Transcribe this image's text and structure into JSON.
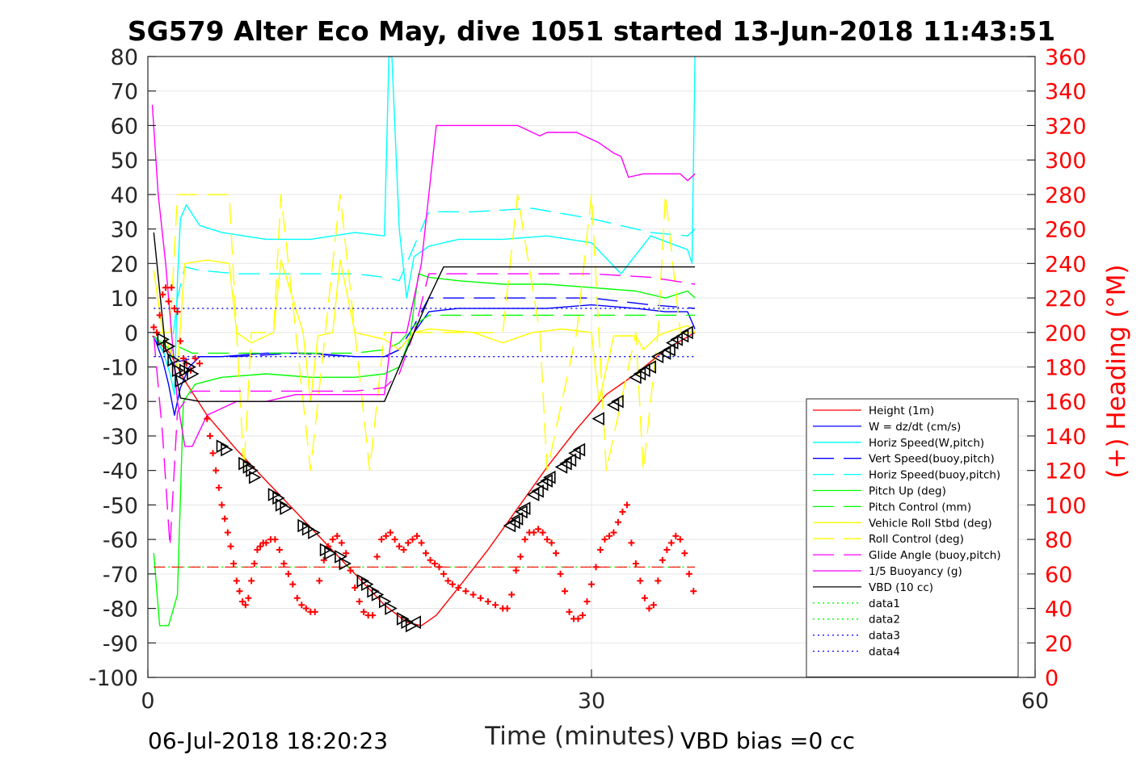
{
  "chart_data": {
    "type": "line",
    "title": "SG579 Alter Eco May, dive 1051 started 13-Jun-2018 11:43:51",
    "xlabel": "Time (minutes)",
    "ylabel": "",
    "y2label": "(+) Heading (°M)",
    "xlim": [
      0,
      60
    ],
    "ylim": [
      -100,
      80
    ],
    "y2lim": [
      0,
      360
    ],
    "x_ticks": [
      "0",
      "30",
      "60"
    ],
    "y_ticks": [
      "-100",
      "-90",
      "-80",
      "-70",
      "-60",
      "-50",
      "-40",
      "-30",
      "-20",
      "-10",
      "0",
      "10",
      "20",
      "30",
      "40",
      "50",
      "60",
      "70",
      "80"
    ],
    "y2_ticks": [
      "0",
      "20",
      "40",
      "60",
      "80",
      "100",
      "120",
      "140",
      "160",
      "180",
      "200",
      "220",
      "240",
      "260",
      "280",
      "300",
      "320",
      "340",
      "360"
    ],
    "grid": true,
    "legend_position": "lower-right",
    "footer_left": "06-Jul-2018 18:20:23",
    "footer_right": "VBD bias =0 cc",
    "colors": {
      "red": "#ff0000",
      "blue": "#0000ff",
      "cyan": "#00ffff",
      "green": "#00ff00",
      "yellow": "#ffff00",
      "magenta": "#ff00ff",
      "black": "#000000"
    },
    "series": [
      {
        "name": "Height (1m)",
        "color": "#ff0000",
        "dash": "solid",
        "x": [
          0.3,
          1.5,
          2.5,
          4,
          6,
          8,
          10,
          12,
          14,
          16,
          17.5,
          18.5,
          19.5,
          21,
          23,
          25,
          27,
          29,
          31,
          33,
          35,
          37
        ],
        "y": [
          -1,
          -6,
          -14,
          -24,
          -34,
          -43,
          -52,
          -61,
          -70,
          -79,
          -84,
          -85,
          -82,
          -74,
          -63,
          -51,
          -39,
          -28,
          -18,
          -12,
          -5,
          0
        ]
      },
      {
        "name": "W = dz/dt (cm/s)",
        "color": "#0000ff",
        "dash": "solid",
        "x": [
          0.4,
          1.0,
          1.4,
          1.8,
          2.2,
          2.8,
          3.5,
          5,
          8,
          11,
          14,
          16,
          17,
          18,
          19,
          21,
          24,
          27,
          30,
          33,
          35,
          36.5,
          37
        ],
        "y": [
          -1,
          -8,
          -15,
          -24,
          -16,
          -10,
          -7,
          -7,
          -6,
          -6,
          -7,
          -7,
          -5,
          0,
          6,
          7,
          7,
          7,
          8,
          7,
          6,
          6,
          1
        ]
      },
      {
        "name": "Horiz Speed(W,pitch)",
        "color": "#00ffff",
        "dash": "solid",
        "x": [
          0.4,
          1.0,
          1.5,
          1.8,
          2.0,
          2.2,
          2.6,
          3.5,
          5,
          8,
          11,
          14,
          16,
          16.3,
          16.5,
          17,
          17.5,
          18,
          19,
          21,
          24,
          27,
          30,
          32,
          34,
          36.5,
          36.8,
          37
        ],
        "y": [
          -1,
          -5,
          -12,
          -18,
          15,
          33,
          37,
          31,
          29,
          27,
          27,
          29,
          28,
          80,
          80,
          30,
          10,
          22,
          25,
          27,
          27,
          28,
          26,
          17,
          28,
          24,
          20,
          80
        ]
      },
      {
        "name": "Vert Speed(buoy,pitch)",
        "color": "#0000ff",
        "dash": "dashed",
        "x": [
          0.4,
          1.5,
          2.5,
          3.5,
          6,
          10,
          14,
          16,
          17,
          18,
          19,
          22,
          26,
          30,
          34,
          37
        ],
        "y": [
          -1,
          -9,
          -8,
          -7,
          -7,
          -6,
          -7,
          -7,
          -5,
          2,
          10,
          10,
          10,
          10,
          8,
          7
        ]
      },
      {
        "name": "Horiz Speed(buoy,pitch)",
        "color": "#00ffff",
        "dash": "dashed",
        "x": [
          0.4,
          1.5,
          2.0,
          2.5,
          3.5,
          6,
          10,
          14,
          16,
          17,
          18,
          19,
          22,
          26,
          30,
          34,
          36.5,
          37
        ],
        "y": [
          -1,
          -9,
          10,
          19,
          18,
          17,
          17,
          17,
          16,
          15,
          25,
          35,
          35,
          36,
          33,
          29,
          28,
          30
        ]
      },
      {
        "name": "Pitch Up (deg)",
        "color": "#00ff00",
        "dash": "solid",
        "x": [
          0.4,
          0.8,
          1.4,
          2.0,
          2.4,
          3.2,
          5,
          8,
          11,
          14,
          16,
          17,
          17.7,
          18.3,
          19,
          21,
          24,
          27,
          30,
          33,
          35,
          36.5,
          37
        ],
        "y": [
          -64,
          -85,
          -85,
          -76,
          -20,
          -15,
          -13,
          -12,
          -13,
          -13,
          -12,
          -10,
          -2,
          17,
          16,
          15,
          14,
          14,
          13,
          12,
          10,
          12,
          10
        ]
      },
      {
        "name": "Pitch Control (mm)",
        "color": "#00ff00",
        "dash": "dashed",
        "x": [
          0.4,
          1.5,
          2.0,
          3.0,
          6,
          10,
          14,
          16,
          17,
          18,
          19,
          24,
          30,
          37
        ],
        "y": [
          -1,
          -5,
          -4,
          -6,
          -6,
          -6,
          -6,
          -5,
          -3,
          2,
          5,
          5,
          5,
          5
        ]
      },
      {
        "name": "Vehicle Roll Stbd (deg)",
        "color": "#ffff00",
        "dash": "solid",
        "x": [
          0.4,
          1.0,
          2.0,
          2.5,
          4,
          5.5,
          6,
          7,
          8.5,
          9,
          10.5,
          11,
          11.5,
          12.5,
          13,
          14,
          16,
          17,
          18,
          19,
          22,
          24,
          26,
          28,
          30,
          30.5,
          31.5,
          33,
          33.5,
          34.5,
          35,
          36.5,
          37
        ],
        "y": [
          18,
          0,
          -10,
          20,
          21,
          20,
          0,
          -3,
          0,
          21,
          0,
          -20,
          -1,
          0,
          21,
          0,
          -2,
          -5,
          0,
          1,
          0,
          -3,
          0,
          1,
          0,
          -20,
          -1,
          -1,
          -5,
          -1,
          0,
          2,
          0
        ]
      },
      {
        "name": "Roll Control (deg)",
        "color": "#ffff00",
        "dash": "dashed",
        "x": [
          0.4,
          1.5,
          2.0,
          3.0,
          5.5,
          6.0,
          6.5,
          7.0,
          8.5,
          9.0,
          10.0,
          11.0,
          12.0,
          13.0,
          14.0,
          15.0,
          16.0,
          18.0,
          20.0,
          22.0,
          24.0,
          25.0,
          26.5,
          27.0,
          29.0,
          30.0,
          30.5,
          31.0,
          33.0,
          33.5,
          34.5,
          35.0,
          36.0,
          37.0
        ],
        "y": [
          0,
          0,
          40,
          40,
          40,
          0,
          -40,
          0,
          0,
          40,
          0,
          -40,
          0,
          40,
          0,
          -40,
          0,
          0,
          0,
          0,
          0,
          40,
          0,
          -40,
          0,
          40,
          0,
          -40,
          0,
          -40,
          0,
          40,
          0,
          0
        ]
      },
      {
        "name": "Glide Angle (buoy,pitch)",
        "color": "#ff00ff",
        "dash": "dashed",
        "x": [
          0.4,
          1.0,
          1.5,
          2.0,
          3.0,
          6,
          10,
          14,
          16,
          17,
          18,
          19,
          22,
          26,
          30,
          34,
          37
        ],
        "y": [
          -1,
          -30,
          -62,
          -23,
          -17,
          -17,
          -17,
          -17,
          -16,
          -12,
          0,
          17,
          17,
          17,
          17,
          16,
          14
        ]
      },
      {
        "name": "1/5 Buoyancy (g)",
        "color": "#ff00ff",
        "dash": "solid",
        "x": [
          0.3,
          0.7,
          1.2,
          1.6,
          2.0,
          2.5,
          3.0,
          4,
          6,
          8,
          10,
          12,
          14,
          16,
          16.5,
          17.5,
          18.5,
          19.5,
          21,
          23,
          25,
          26.5,
          27,
          29,
          30.5,
          31.5,
          32,
          32.5,
          33.5,
          35,
          36,
          36.5,
          37
        ],
        "y": [
          66,
          40,
          20,
          0,
          -20,
          -33,
          -33,
          -24,
          -20,
          -20,
          -18,
          -18,
          -18,
          -18,
          0,
          0,
          20,
          60,
          60,
          60,
          60,
          57,
          58,
          58,
          55,
          52,
          51,
          45,
          46,
          46,
          46,
          44,
          46
        ]
      },
      {
        "name": "VBD (10 cc)",
        "color": "#000000",
        "dash": "solid",
        "x": [
          0.4,
          1.2,
          1.8,
          2.2,
          3.5,
          8,
          12,
          16,
          17,
          18,
          19,
          20,
          25,
          30,
          35,
          37
        ],
        "y": [
          29,
          -5,
          -10,
          -19,
          -20,
          -20,
          -20,
          -20,
          -10,
          0,
          10,
          19,
          19,
          19,
          19,
          19
        ]
      },
      {
        "name": "data1",
        "color": "#00ff00",
        "dash": "dotted",
        "x": [
          0.4,
          37
        ],
        "y": [
          -68,
          -68
        ]
      },
      {
        "name": "data2",
        "color": "#00ff00",
        "dash": "dotted",
        "x": [],
        "y": []
      },
      {
        "name": "data3",
        "color": "#0000ff",
        "dash": "dotted",
        "x": [
          0.4,
          37
        ],
        "y": [
          7,
          7
        ]
      },
      {
        "name": "data4",
        "color": "#0000ff",
        "dash": "dotted",
        "x": [
          0.4,
          37
        ],
        "y": [
          -7,
          -7
        ]
      }
    ],
    "reference_line": {
      "color": "#ff0000",
      "dash": "dashed",
      "y": -68,
      "x": [
        0.4,
        37
      ]
    },
    "heading_points": {
      "color": "#ff0000",
      "x": [
        0.4,
        0.6,
        0.8,
        1.0,
        1.2,
        1.4,
        1.6,
        1.8,
        2.0,
        2.2,
        2.4,
        2.6,
        2.9,
        3.2,
        3.5,
        4.0,
        4.2,
        4.4,
        4.6,
        4.8,
        5.0,
        5.2,
        5.4,
        5.6,
        5.8,
        6.0,
        6.2,
        6.4,
        6.6,
        6.8,
        7.0,
        7.2,
        7.4,
        7.6,
        7.8,
        8.0,
        8.3,
        8.6,
        8.9,
        9.2,
        9.5,
        9.8,
        10.1,
        10.4,
        10.7,
        11.0,
        11.3,
        11.6,
        11.9,
        12.2,
        12.5,
        12.8,
        13.1,
        13.4,
        13.7,
        14.0,
        14.3,
        14.6,
        14.9,
        15.2,
        15.5,
        15.8,
        16.1,
        16.4,
        16.7,
        17.0,
        17.3,
        17.6,
        17.9,
        18.2,
        18.5,
        18.8,
        19.1,
        19.4,
        19.7,
        20.0,
        20.3,
        20.6,
        21.0,
        21.5,
        22.0,
        22.5,
        23.0,
        23.5,
        24.0,
        24.3,
        24.6,
        24.9,
        25.2,
        25.5,
        25.8,
        26.1,
        26.4,
        26.7,
        27.0,
        27.3,
        27.6,
        27.9,
        28.2,
        28.5,
        28.8,
        29.1,
        29.4,
        29.7,
        30.0,
        30.3,
        30.6,
        30.9,
        31.2,
        31.5,
        31.8,
        32.1,
        32.4,
        32.7,
        33.0,
        33.3,
        33.6,
        33.9,
        34.2,
        34.5,
        34.8,
        35.1,
        35.4,
        35.7,
        36.0,
        36.3,
        36.6,
        36.9
      ],
      "y": [
        203,
        200,
        210,
        222,
        226,
        218,
        226,
        214,
        212,
        195,
        185,
        182,
        178,
        185,
        182,
        150,
        140,
        130,
        120,
        110,
        100,
        92,
        84,
        76,
        66,
        56,
        50,
        44,
        42,
        46,
        56,
        66,
        74,
        76,
        78,
        78,
        80,
        80,
        74,
        66,
        60,
        54,
        46,
        42,
        40,
        38,
        38,
        56,
        68,
        76,
        80,
        82,
        78,
        72,
        62,
        52,
        44,
        38,
        36,
        36,
        70,
        80,
        82,
        84,
        80,
        76,
        74,
        78,
        80,
        82,
        78,
        72,
        68,
        66,
        64,
        60,
        56,
        54,
        52,
        50,
        48,
        46,
        44,
        42,
        40,
        40,
        48,
        62,
        70,
        80,
        84,
        84,
        86,
        84,
        80,
        78,
        72,
        60,
        50,
        38,
        34,
        34,
        36,
        44,
        54,
        64,
        74,
        80,
        82,
        84,
        90,
        96,
        100,
        78,
        66,
        56,
        46,
        40,
        42,
        56,
        68,
        74,
        78,
        82,
        80,
        72,
        60,
        50
      ]
    },
    "depth_markers": {
      "x": [
        1.0,
        1.4,
        1.7,
        2.0,
        2.2,
        2.5,
        2.8,
        3.0,
        5.0,
        5.3,
        6.5,
        6.8,
        7.0,
        7.2,
        8.5,
        8.8,
        9.0,
        9.3,
        10.5,
        10.8,
        11.2,
        12.0,
        12.3,
        13.0,
        13.3,
        14.5,
        14.8,
        15.2,
        15.5,
        16.0,
        16.4,
        17.2,
        17.5,
        17.8,
        18.1,
        24.5,
        24.8,
        25.0,
        25.3,
        25.5,
        26.1,
        26.4,
        26.7,
        27.0,
        27.2,
        28.0,
        28.3,
        28.6,
        28.9,
        29.2,
        30.5,
        31.5,
        31.8,
        33.0,
        33.3,
        33.6,
        34.0,
        34.5,
        35.0,
        35.3,
        35.5,
        35.8,
        36.2,
        36.5
      ],
      "y": [
        -2,
        -4,
        -8,
        -11,
        -14,
        -11,
        -10,
        -12,
        -33,
        -34,
        -38,
        -39,
        -40,
        -42,
        -47,
        -48,
        -50,
        -51,
        -56,
        -57,
        -58,
        -63,
        -64,
        -65,
        -67,
        -72,
        -73,
        -75,
        -76,
        -78,
        -80,
        -83,
        -84,
        -85,
        -84,
        -56,
        -55,
        -54,
        -52,
        -51,
        -47,
        -46,
        -44,
        -43,
        -42,
        -39,
        -38,
        -37,
        -35,
        -34,
        -25,
        -21,
        -20,
        -13,
        -12,
        -11,
        -10,
        -7,
        -6,
        -5,
        -3,
        -2,
        -1,
        0
      ]
    }
  }
}
